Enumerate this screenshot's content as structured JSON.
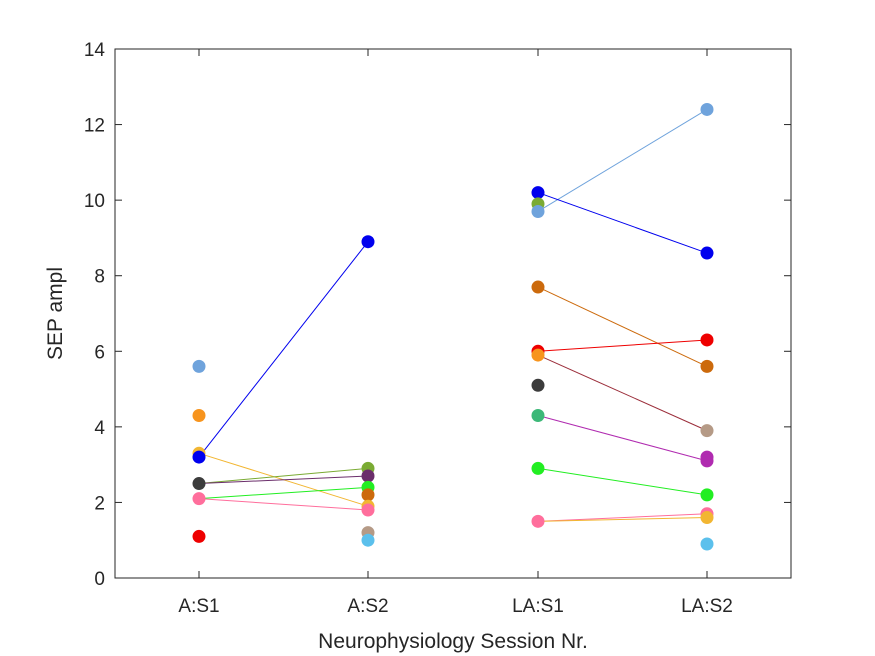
{
  "chart_data": {
    "type": "scatter",
    "title": "",
    "xlabel": "Neurophysiology Session Nr.",
    "ylabel": "SEP ampl",
    "categories": [
      "A:S1",
      "A:S2",
      "LA:S1",
      "LA:S2"
    ],
    "ylim": [
      0,
      14
    ],
    "yticks": [
      0,
      2,
      4,
      6,
      8,
      10,
      12,
      14
    ],
    "grid": false,
    "legend": "none",
    "points": [
      {
        "x": "A:S1",
        "y": 5.6,
        "color": "#6fa3dc"
      },
      {
        "x": "A:S1",
        "y": 4.3,
        "color": "#f7941d"
      },
      {
        "x": "A:S1",
        "y": 3.3,
        "color": "#f2b632"
      },
      {
        "x": "A:S1",
        "y": 3.2,
        "color": "#0000ee"
      },
      {
        "x": "A:S1",
        "y": 2.5,
        "color": "#3c3c3c"
      },
      {
        "x": "A:S1",
        "y": 2.1,
        "color": "#ff6e9c"
      },
      {
        "x": "A:S1",
        "y": 1.1,
        "color": "#ee0000"
      },
      {
        "x": "A:S2",
        "y": 8.9,
        "color": "#0000ee"
      },
      {
        "x": "A:S2",
        "y": 2.9,
        "color": "#7aab33"
      },
      {
        "x": "A:S2",
        "y": 2.7,
        "color": "#6b2e6b"
      },
      {
        "x": "A:S2",
        "y": 2.4,
        "color": "#22ee22"
      },
      {
        "x": "A:S2",
        "y": 2.2,
        "color": "#cc6a0c"
      },
      {
        "x": "A:S2",
        "y": 1.9,
        "color": "#f2b632"
      },
      {
        "x": "A:S2",
        "y": 1.8,
        "color": "#ff6e9c"
      },
      {
        "x": "A:S2",
        "y": 1.2,
        "color": "#b59a86"
      },
      {
        "x": "A:S2",
        "y": 1.0,
        "color": "#5bc0ec"
      },
      {
        "x": "LA:S1",
        "y": 10.2,
        "color": "#0000ee"
      },
      {
        "x": "LA:S1",
        "y": 9.9,
        "color": "#7aab33"
      },
      {
        "x": "LA:S1",
        "y": 9.7,
        "color": "#6fa3dc"
      },
      {
        "x": "LA:S1",
        "y": 7.7,
        "color": "#cc6a0c"
      },
      {
        "x": "LA:S1",
        "y": 6.0,
        "color": "#ee0000"
      },
      {
        "x": "LA:S1",
        "y": 5.9,
        "color": "#f7941d"
      },
      {
        "x": "LA:S1",
        "y": 5.1,
        "color": "#3c3c3c"
      },
      {
        "x": "LA:S1",
        "y": 4.3,
        "color": "#3cb878"
      },
      {
        "x": "LA:S1",
        "y": 2.9,
        "color": "#22ee22"
      },
      {
        "x": "LA:S1",
        "y": 1.5,
        "color": "#ff6e9c"
      },
      {
        "x": "LA:S2",
        "y": 12.4,
        "color": "#6fa3dc"
      },
      {
        "x": "LA:S2",
        "y": 8.6,
        "color": "#0000ee"
      },
      {
        "x": "LA:S2",
        "y": 6.3,
        "color": "#ee0000"
      },
      {
        "x": "LA:S2",
        "y": 5.6,
        "color": "#cc6a0c"
      },
      {
        "x": "LA:S2",
        "y": 3.9,
        "color": "#b59a86"
      },
      {
        "x": "LA:S2",
        "y": 3.2,
        "color": "#b02bb0"
      },
      {
        "x": "LA:S2",
        "y": 3.1,
        "color": "#b02bb0"
      },
      {
        "x": "LA:S2",
        "y": 2.2,
        "color": "#22ee22"
      },
      {
        "x": "LA:S2",
        "y": 1.7,
        "color": "#ff6e9c"
      },
      {
        "x": "LA:S2",
        "y": 1.6,
        "color": "#f2b632"
      },
      {
        "x": "LA:S2",
        "y": 0.9,
        "color": "#5bc0ec"
      }
    ],
    "lines": [
      {
        "from": {
          "x": "A:S1",
          "y": 3.2
        },
        "to": {
          "x": "A:S2",
          "y": 8.9
        },
        "color": "#0000ee"
      },
      {
        "from": {
          "x": "A:S1",
          "y": 3.3
        },
        "to": {
          "x": "A:S2",
          "y": 1.9
        },
        "color": "#f2b632"
      },
      {
        "from": {
          "x": "A:S1",
          "y": 2.5
        },
        "to": {
          "x": "A:S2",
          "y": 2.9
        },
        "color": "#7aab33"
      },
      {
        "from": {
          "x": "A:S1",
          "y": 2.5
        },
        "to": {
          "x": "A:S2",
          "y": 2.7
        },
        "color": "#6b2e6b"
      },
      {
        "from": {
          "x": "A:S1",
          "y": 2.1
        },
        "to": {
          "x": "A:S2",
          "y": 2.4
        },
        "color": "#22ee22"
      },
      {
        "from": {
          "x": "A:S1",
          "y": 2.1
        },
        "to": {
          "x": "A:S2",
          "y": 1.8
        },
        "color": "#ff6e9c"
      },
      {
        "from": {
          "x": "LA:S1",
          "y": 9.7
        },
        "to": {
          "x": "LA:S2",
          "y": 12.4
        },
        "color": "#6fa3dc"
      },
      {
        "from": {
          "x": "LA:S1",
          "y": 10.2
        },
        "to": {
          "x": "LA:S2",
          "y": 8.6
        },
        "color": "#0000ee"
      },
      {
        "from": {
          "x": "LA:S1",
          "y": 7.7
        },
        "to": {
          "x": "LA:S2",
          "y": 5.6
        },
        "color": "#cc6a0c"
      },
      {
        "from": {
          "x": "LA:S1",
          "y": 6.0
        },
        "to": {
          "x": "LA:S2",
          "y": 6.3
        },
        "color": "#ee0000"
      },
      {
        "from": {
          "x": "LA:S1",
          "y": 5.9
        },
        "to": {
          "x": "LA:S2",
          "y": 3.9
        },
        "color": "#9b2d3a"
      },
      {
        "from": {
          "x": "LA:S1",
          "y": 4.3
        },
        "to": {
          "x": "LA:S2",
          "y": 3.1
        },
        "color": "#b02bb0"
      },
      {
        "from": {
          "x": "LA:S1",
          "y": 2.9
        },
        "to": {
          "x": "LA:S2",
          "y": 2.2
        },
        "color": "#22ee22"
      },
      {
        "from": {
          "x": "LA:S1",
          "y": 1.5
        },
        "to": {
          "x": "LA:S2",
          "y": 1.7
        },
        "color": "#ff6e9c"
      },
      {
        "from": {
          "x": "LA:S1",
          "y": 1.5
        },
        "to": {
          "x": "LA:S2",
          "y": 1.6
        },
        "color": "#f2b632"
      }
    ]
  }
}
